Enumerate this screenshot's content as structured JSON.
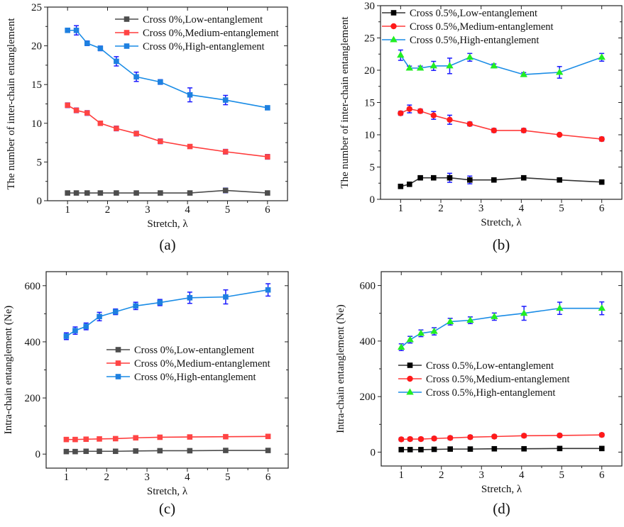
{
  "chart_data": [
    {
      "type": "line",
      "panel_label": "(a)",
      "xlabel": "Stretch, λ",
      "ylabel": "The number of inter-chain entanglement",
      "xlim": [
        0.5,
        6.5
      ],
      "ylim": [
        0,
        25
      ],
      "xticks": [
        1,
        2,
        3,
        4,
        5,
        6
      ],
      "yticks": [
        0,
        5,
        10,
        15,
        20,
        25
      ],
      "legend_position": "top-right",
      "x": [
        1,
        1.22,
        1.49,
        1.82,
        2.22,
        2.72,
        3.32,
        4.06,
        4.95,
        6
      ],
      "series": [
        {
          "name": "Cross 0%,Low-entanglement",
          "color": "#4d4d4d",
          "marker": "square",
          "marker_color": "#4d4d4d",
          "values": [
            1,
            1,
            1,
            1,
            1,
            1,
            1,
            1,
            1.33,
            1
          ],
          "errors": [
            0,
            0,
            0,
            0,
            0,
            0,
            0,
            0,
            0.3,
            0
          ]
        },
        {
          "name": "Cross 0%,Medium-entanglement",
          "color": "#ff3b3b",
          "marker": "square",
          "marker_color": "#ff4444",
          "values": [
            12.33,
            11.67,
            11.33,
            10,
            9.33,
            8.67,
            7.67,
            7,
            6.33,
            5.67
          ],
          "errors": [
            0.3,
            0.3,
            0.3,
            0,
            0.3,
            0.3,
            0.3,
            0,
            0.3,
            0.3
          ]
        },
        {
          "name": "Cross 0%,High-entanglement",
          "color": "#1a8ce6",
          "marker": "square",
          "marker_color": "#1e80e0",
          "values": [
            22,
            22,
            20.33,
            19.67,
            18,
            16,
            15.33,
            13.67,
            13,
            12
          ],
          "errors": [
            0,
            0.6,
            0.3,
            0.3,
            0.6,
            0.6,
            0.3,
            0.9,
            0.6,
            0
          ]
        }
      ]
    },
    {
      "type": "line",
      "panel_label": "(b)",
      "xlabel": "Stretch, λ",
      "ylabel": "The number of inter-chain entanglement",
      "xlim": [
        0.5,
        6.5
      ],
      "ylim": [
        0,
        30
      ],
      "xticks": [
        1,
        2,
        3,
        4,
        5,
        6
      ],
      "yticks": [
        0,
        5,
        10,
        15,
        20,
        25,
        30
      ],
      "legend_position": "top-left",
      "x": [
        1,
        1.22,
        1.49,
        1.82,
        2.22,
        2.72,
        3.32,
        4.06,
        4.95,
        6
      ],
      "series": [
        {
          "name": "Cross 0.5%,Low-entanglement",
          "color": "#333333",
          "marker": "square",
          "marker_color": "#000000",
          "values": [
            2,
            2.33,
            3.33,
            3.33,
            3.33,
            3,
            3,
            3.33,
            3,
            2.67
          ],
          "errors": [
            0,
            0.2,
            0.2,
            0.2,
            0.7,
            0.6,
            0,
            0.2,
            0,
            0.2
          ]
        },
        {
          "name": "Cross 0.5%,Medium-entanglement",
          "color": "#ff3b3b",
          "marker": "circle",
          "marker_color": "#ff1a1a",
          "values": [
            13.33,
            14,
            13.67,
            13,
            12.33,
            11.67,
            10.67,
            10.67,
            10,
            9.33
          ],
          "errors": [
            0.3,
            0.6,
            0.3,
            0.6,
            0.7,
            0.3,
            0.3,
            0.3,
            0,
            0.3
          ]
        },
        {
          "name": "Cross 0.5%,High-entanglement",
          "color": "#1a8ce6",
          "marker": "triangle",
          "marker_color": "#22ee22",
          "values": [
            22.33,
            20.33,
            20.33,
            20.67,
            20.67,
            22,
            20.67,
            19.33,
            19.67,
            22
          ],
          "errors": [
            0.8,
            0.3,
            0.3,
            0.7,
            1.2,
            0.6,
            0.3,
            0.3,
            0.9,
            0.6
          ]
        }
      ]
    },
    {
      "type": "line",
      "panel_label": "(c)",
      "xlabel": "Stretch, λ",
      "ylabel": "Intra-chain entanglement (Ne)",
      "xlim": [
        0.5,
        6.5
      ],
      "ylim": [
        -50,
        650
      ],
      "xticks": [
        1,
        2,
        3,
        4,
        5,
        6
      ],
      "yticks": [
        0,
        200,
        400,
        600
      ],
      "legend_position": "center-right",
      "x": [
        1,
        1.22,
        1.49,
        1.82,
        2.22,
        2.72,
        3.32,
        4.06,
        4.95,
        6
      ],
      "series": [
        {
          "name": "Cross 0%,Low-entanglement",
          "color": "#4d4d4d",
          "marker": "square",
          "marker_color": "#4d4d4d",
          "values": [
            9,
            9,
            10,
            10,
            10,
            11,
            12,
            12,
            13,
            13
          ],
          "errors": [
            5,
            5,
            5,
            5,
            5,
            5,
            5,
            5,
            5,
            5
          ]
        },
        {
          "name": "Cross 0%,Medium-entanglement",
          "color": "#ff3b3b",
          "marker": "square",
          "marker_color": "#ff4444",
          "values": [
            52,
            52,
            53,
            54,
            55,
            58,
            60,
            61,
            62,
            63
          ],
          "errors": [
            6,
            6,
            6,
            6,
            6,
            6,
            6,
            6,
            6,
            6
          ]
        },
        {
          "name": "Cross 0%,High-entanglement",
          "color": "#1a8ce6",
          "marker": "square",
          "marker_color": "#1e80e0",
          "values": [
            420,
            440,
            455,
            490,
            507,
            528,
            540,
            557,
            560,
            585
          ],
          "errors": [
            12,
            13,
            12,
            15,
            10,
            13,
            11,
            20,
            25,
            22
          ]
        }
      ]
    },
    {
      "type": "line",
      "panel_label": "(d)",
      "xlabel": "Stretch, λ",
      "ylabel": "Intra-chain entanglement (Ne)",
      "xlim": [
        0.5,
        6.5
      ],
      "ylim": [
        -50,
        650
      ],
      "xticks": [
        1,
        2,
        3,
        4,
        5,
        6
      ],
      "yticks": [
        0,
        200,
        400,
        600
      ],
      "legend_position": "center-left",
      "x": [
        1,
        1.22,
        1.49,
        1.82,
        2.22,
        2.72,
        3.32,
        4.06,
        4.95,
        6
      ],
      "series": [
        {
          "name": "Cross 0.5%,Low-entanglement",
          "color": "#333333",
          "marker": "square",
          "marker_color": "#000000",
          "values": [
            9,
            9,
            9,
            10,
            11,
            11,
            12,
            12,
            13,
            13
          ],
          "errors": [
            5,
            5,
            5,
            5,
            5,
            5,
            5,
            5,
            5,
            5
          ]
        },
        {
          "name": "Cross 0.5%,Medium-entanglement",
          "color": "#ff3b3b",
          "marker": "circle",
          "marker_color": "#ff1a1a",
          "values": [
            46,
            47,
            47,
            49,
            51,
            54,
            56,
            59,
            60,
            62
          ],
          "errors": [
            6,
            6,
            6,
            6,
            6,
            6,
            6,
            6,
            6,
            6
          ]
        },
        {
          "name": "Cross 0.5%,High-entanglement",
          "color": "#1a8ce6",
          "marker": "triangle",
          "marker_color": "#22ee22",
          "values": [
            378,
            405,
            428,
            435,
            470,
            475,
            488,
            500,
            518,
            518
          ],
          "errors": [
            12,
            12,
            12,
            13,
            12,
            12,
            13,
            25,
            22,
            23
          ]
        }
      ]
    }
  ],
  "error_bar_color": "#1a1aff"
}
